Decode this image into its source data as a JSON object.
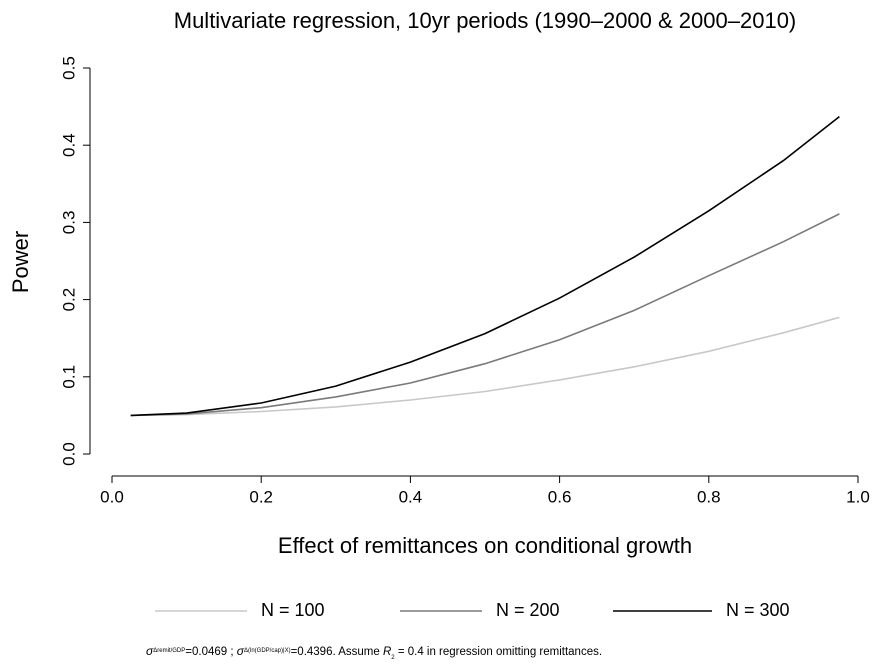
{
  "chart_data": {
    "type": "line",
    "title": "Multivariate regression, 10yr periods (1990–2000 & 2000–2010)",
    "x_label": "Effect of remittances on conditional growth",
    "y_label": "Power",
    "x": [
      0.025,
      0.1,
      0.2,
      0.3,
      0.4,
      0.5,
      0.6,
      0.7,
      0.8,
      0.9,
      0.975
    ],
    "series": [
      {
        "name": "N = 100",
        "color": "#c8c8c8",
        "values": [
          0.05,
          0.051,
          0.055,
          0.061,
          0.07,
          0.081,
          0.096,
          0.113,
          0.133,
          0.157,
          0.177
        ]
      },
      {
        "name": "N = 200",
        "color": "#7a7a7a",
        "values": [
          0.05,
          0.052,
          0.06,
          0.074,
          0.092,
          0.117,
          0.148,
          0.186,
          0.231,
          0.275,
          0.311
        ]
      },
      {
        "name": "N = 300",
        "color": "#000000",
        "values": [
          0.05,
          0.053,
          0.066,
          0.088,
          0.119,
          0.156,
          0.202,
          0.255,
          0.315,
          0.38,
          0.437
        ]
      }
    ],
    "xlim": [
      0,
      1
    ],
    "xticks": [
      {
        "value": 0,
        "label": "0.0"
      },
      0.2,
      0.4,
      0.6,
      0.8,
      {
        "value": 1,
        "label": "1.0"
      }
    ],
    "ylim": [
      0,
      0.5
    ],
    "yticks": [
      {
        "value": 0,
        "label": "0.0"
      },
      0.1,
      0.2,
      0.3,
      0.4,
      0.5
    ],
    "legend": "bottom",
    "footnote": [
      "σ",
      "Δremit/GDP",
      "=0.0469 ; ",
      "σ",
      "Δ(ln(GDP/cap)|X)",
      "=0.4396. Assume ",
      "R",
      "2",
      " = 0.4 in regression omitting remittances."
    ]
  }
}
